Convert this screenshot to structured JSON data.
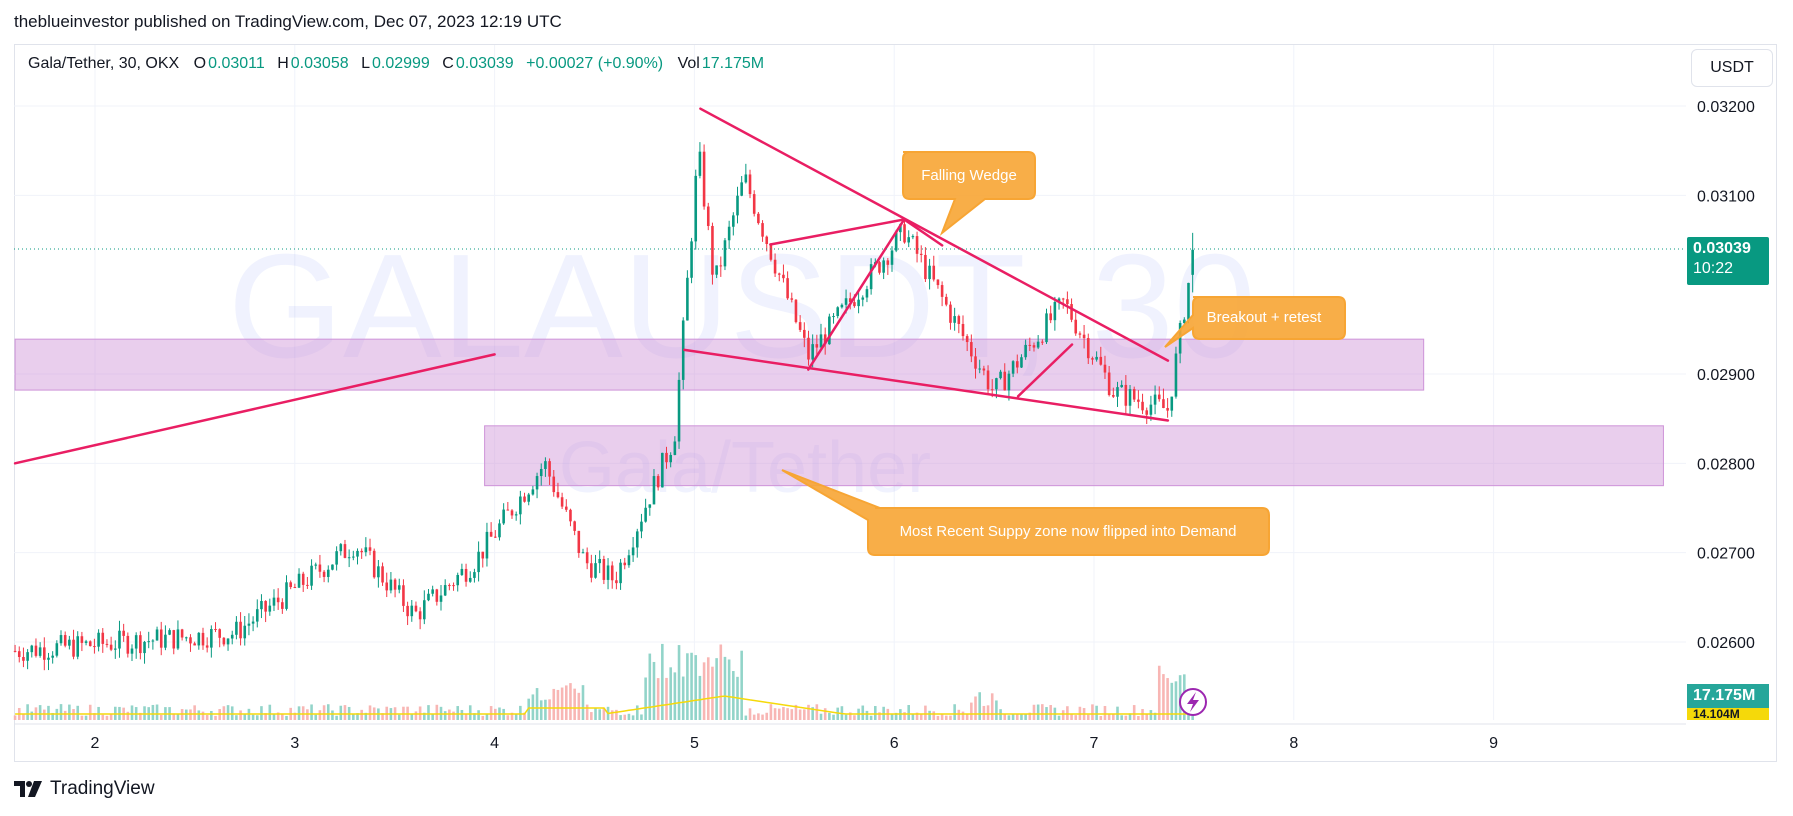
{
  "header": {
    "publisher_line": "theblueinvestor published on TradingView.com, Dec 07, 2023 12:19 UTC"
  },
  "legend": {
    "symbol": "Gala/Tether, 30, OKX",
    "o_label": "O",
    "o_value": "0.03011",
    "h_label": "H",
    "h_value": "0.03058",
    "l_label": "L",
    "l_value": "0.02999",
    "c_label": "C",
    "c_value": "0.03039",
    "change": "+0.00027 (+0.90%)",
    "vol_label": "Vol",
    "vol_value": "17.175M"
  },
  "currency_button": "USDT",
  "watermark": {
    "ticker": "GALAUSDT, 30",
    "name": "Gala/Tether"
  },
  "price_badge": {
    "price": "0.03039",
    "countdown": "10:22"
  },
  "volume_badge": {
    "value": "17.175M",
    "ma_value": "14.104M"
  },
  "annotations": {
    "falling_wedge": "Falling Wedge",
    "breakout": "Breakout + retest",
    "demand": "Most Recent Suppy zone now flipped into Demand"
  },
  "footer": {
    "brand": "TradingView"
  },
  "colors": {
    "up": "#089981",
    "down": "#f23645",
    "trendline": "#e91e63",
    "zone": "#ce93d8",
    "annotation": "#f7a534",
    "watermark": "#5b6cf7"
  },
  "chart_data": {
    "type": "candlestick",
    "title": "Gala/Tether, 30, OKX",
    "x_ticks": [
      "2",
      "3",
      "4",
      "5",
      "6",
      "7",
      "8",
      "9"
    ],
    "y_ticks": [
      "0.03200",
      "0.03100",
      "0.02900",
      "0.02800",
      "0.02700",
      "0.02600"
    ],
    "ylim": [
      0.02515,
      0.0323
    ],
    "last_price": 0.03039,
    "zones": [
      {
        "label": "upper supply/demand zone",
        "day_from": 1.6,
        "day_to": 8.65,
        "price_low": 0.02882,
        "price_high": 0.02939
      },
      {
        "label": "demand zone",
        "day_from": 3.95,
        "day_to": 9.85,
        "price_low": 0.02775,
        "price_high": 0.02842
      }
    ],
    "trendlines": [
      {
        "name": "rising support",
        "from": [
          1.6,
          0.028
        ],
        "to": [
          4.0,
          0.02922
        ]
      },
      {
        "name": "wedge upper",
        "from": [
          5.03,
          0.03197
        ],
        "to": [
          7.37,
          0.02915
        ]
      },
      {
        "name": "wedge lower",
        "from": [
          4.95,
          0.02927
        ],
        "to": [
          7.37,
          0.02848
        ]
      },
      {
        "name": "flag 1 top",
        "from": [
          5.38,
          0.03045
        ],
        "to": [
          6.05,
          0.03073
        ]
      },
      {
        "name": "flag 1 impulse",
        "from": [
          5.57,
          0.02905
        ],
        "to": [
          6.05,
          0.03073
        ]
      },
      {
        "name": "flag 1 break",
        "from": [
          6.05,
          0.03073
        ],
        "to": [
          6.24,
          0.03044
        ]
      },
      {
        "name": "flag 2 impulse",
        "from": [
          6.62,
          0.02875
        ],
        "to": [
          6.89,
          0.02933
        ]
      }
    ],
    "candles_summary": {
      "start_day": 1.6,
      "end_day": 7.5,
      "key_points": [
        {
          "day": 1.6,
          "price": 0.0259
        },
        {
          "day": 2.7,
          "price": 0.0261
        },
        {
          "day": 3.0,
          "price": 0.0266
        },
        {
          "day": 3.3,
          "price": 0.0271
        },
        {
          "day": 3.6,
          "price": 0.0263
        },
        {
          "day": 3.9,
          "price": 0.0269
        },
        {
          "day": 4.25,
          "price": 0.028
        },
        {
          "day": 4.45,
          "price": 0.0269
        },
        {
          "day": 4.6,
          "price": 0.0267
        },
        {
          "day": 4.9,
          "price": 0.0283
        },
        {
          "day": 5.02,
          "price": 0.0315
        },
        {
          "day": 5.1,
          "price": 0.03
        },
        {
          "day": 5.25,
          "price": 0.0312
        },
        {
          "day": 5.57,
          "price": 0.0292
        },
        {
          "day": 6.05,
          "price": 0.0306
        },
        {
          "day": 6.5,
          "price": 0.0288
        },
        {
          "day": 6.85,
          "price": 0.0298
        },
        {
          "day": 7.1,
          "price": 0.0288
        },
        {
          "day": 7.37,
          "price": 0.0286
        },
        {
          "day": 7.5,
          "price": 0.03039
        }
      ]
    }
  }
}
